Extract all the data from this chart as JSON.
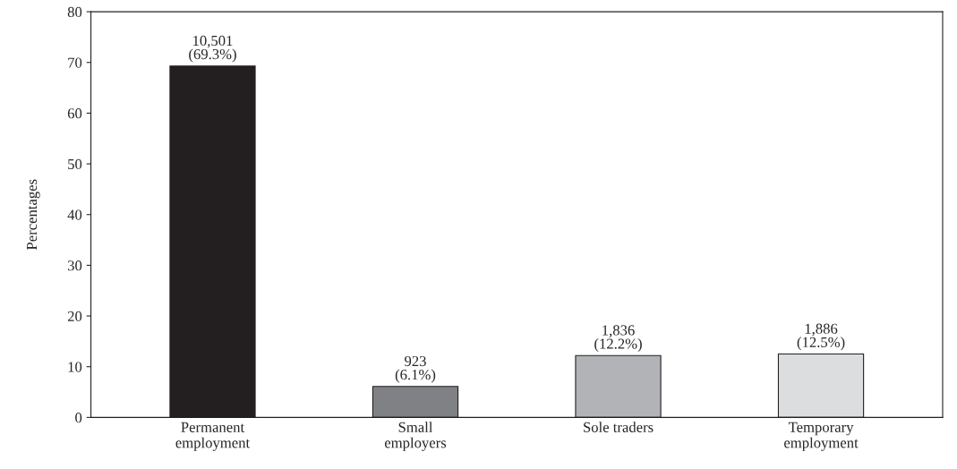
{
  "chart_data": {
    "type": "bar",
    "ylabel": "Percentages",
    "categories": [
      "Permanent\nemployment",
      "Small\nemployers",
      "Sole traders",
      "Temporary\nemployment"
    ],
    "values": [
      69.3,
      6.1,
      12.2,
      12.5
    ],
    "colors": [
      "#231f20",
      "#808184",
      "#b1b3b6",
      "#dcdddf"
    ],
    "value_labels": [
      "10,501\n(69.3%)",
      "923\n(6.1%)",
      "1,836\n(12.2%)",
      "1,886\n(12.5%)"
    ],
    "ylim": [
      0,
      80
    ],
    "yticks": [
      0,
      10,
      20,
      30,
      40,
      50,
      60,
      70,
      80
    ],
    "grid": false,
    "legend": false
  }
}
